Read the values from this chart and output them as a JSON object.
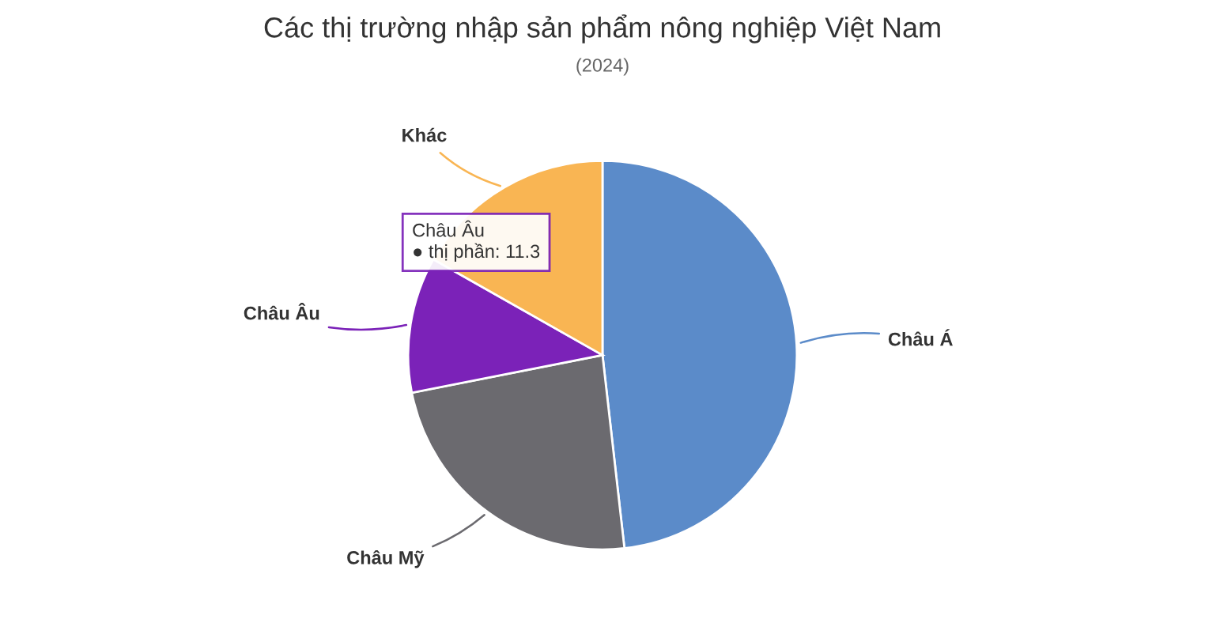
{
  "chart_data": {
    "type": "pie",
    "title": "Các thị trường nhập sản phẩm nông nghiệp Việt Nam",
    "subtitle": "(2024)",
    "categories": [
      "Châu Á",
      "Châu Mỹ",
      "Châu Âu",
      "Khác"
    ],
    "values": [
      48.2,
      23.7,
      11.3,
      16.8
    ],
    "colors": [
      "#5b8bc9",
      "#6b6a6f",
      "#7b22b8",
      "#f9b553"
    ],
    "annotations": [
      "Châu Âu\n● thị phần: 11.3"
    ],
    "legend": false
  }
}
